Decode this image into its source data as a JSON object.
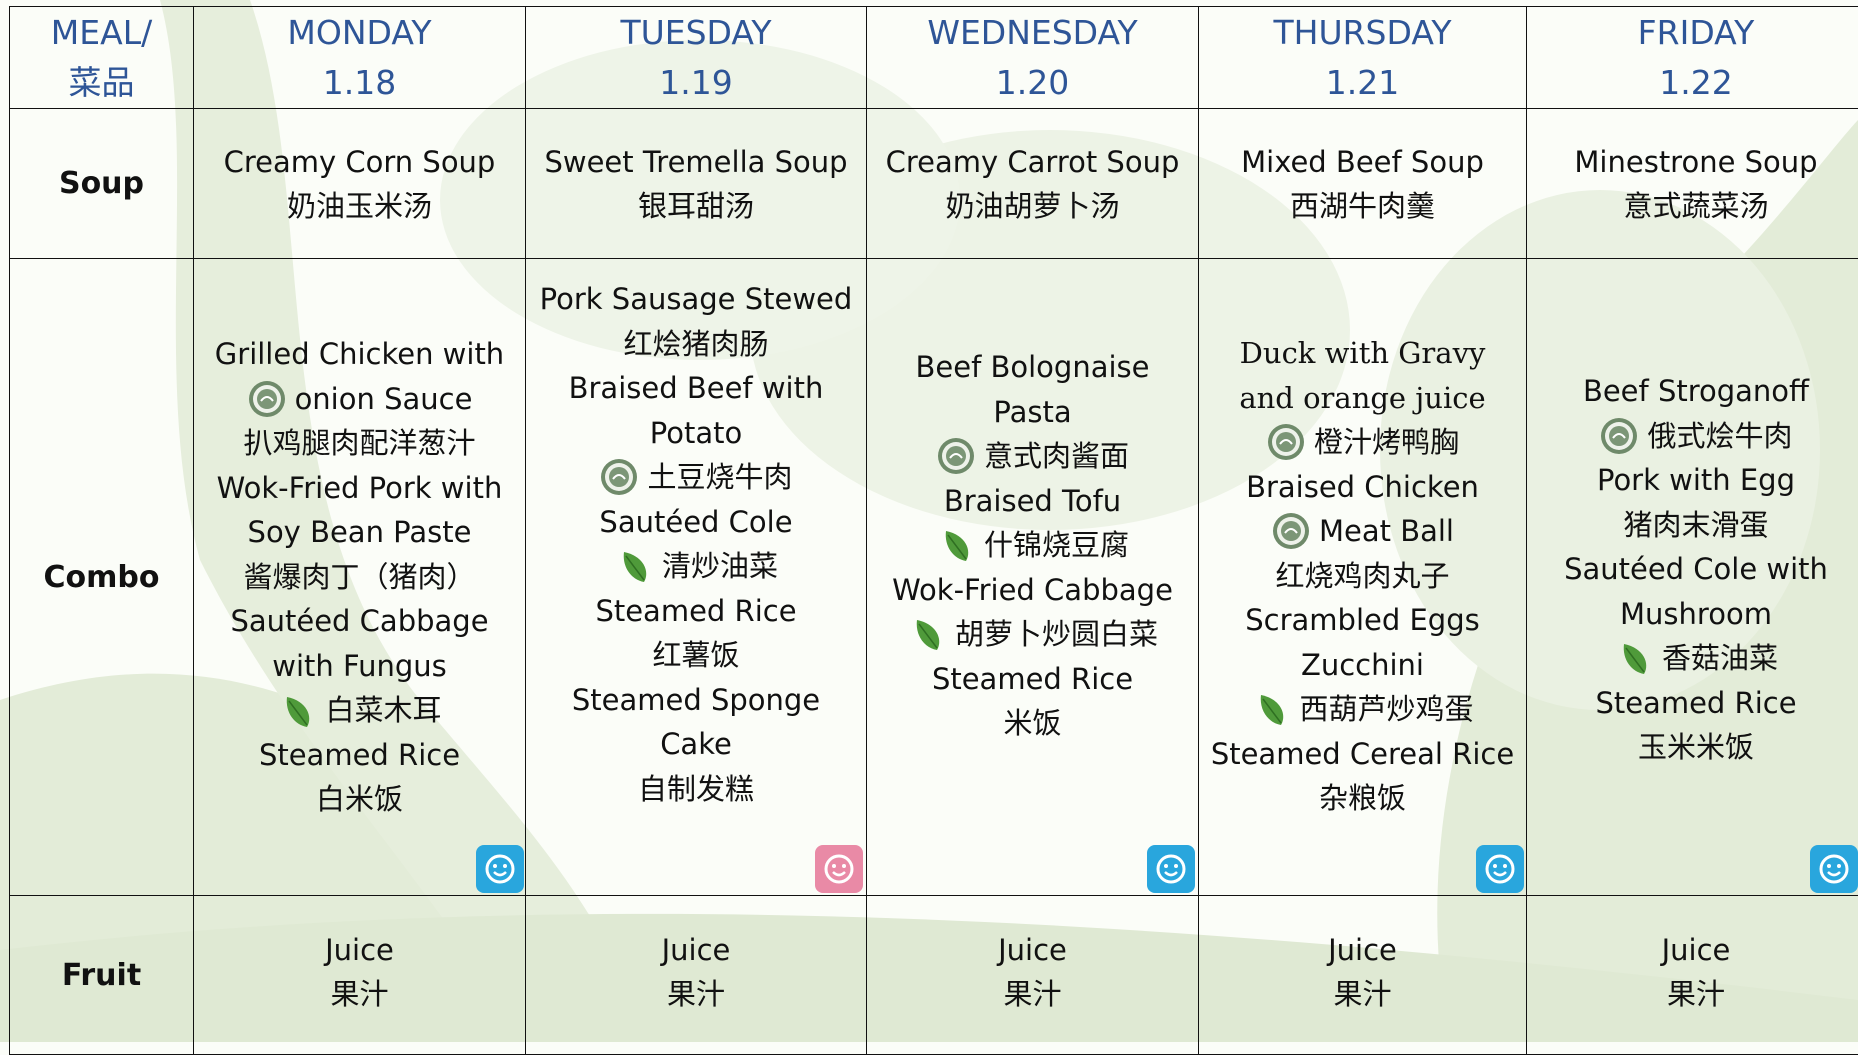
{
  "header": {
    "meal": [
      "MEAL/",
      "菜品"
    ],
    "days": [
      {
        "day": "MONDAY",
        "date": "1.18"
      },
      {
        "day": "TUESDAY",
        "date": "1.19"
      },
      {
        "day": "WEDNESDAY",
        "date": "1.20"
      },
      {
        "day": "THURSDAY",
        "date": "1.21"
      },
      {
        "day": "FRIDAY",
        "date": "1.22"
      }
    ]
  },
  "rows": {
    "soup": {
      "label": "Soup",
      "items": [
        [
          "Creamy Corn Soup",
          "奶油玉米汤"
        ],
        [
          "Sweet Tremella Soup",
          "银耳甜汤"
        ],
        [
          "Creamy Carrot Soup",
          "奶油胡萝卜汤"
        ],
        [
          "Mixed Beef Soup",
          "西湖牛肉羹"
        ],
        [
          "Minestrone Soup",
          "意式蔬菜汤"
        ]
      ]
    },
    "combo": {
      "label": "Combo",
      "items": [
        [
          "Grilled Chicken with",
          "onion Sauce",
          "扒鸡腿肉配洋葱汁",
          "Wok-Fried Pork with",
          "Soy Bean Paste",
          "酱爆肉丁（猪肉）",
          "Sautéed Cabbage",
          "with Fungus",
          "白菜木耳",
          "Steamed Rice",
          "白米饭"
        ],
        [
          "Pork  Sausage Stewed",
          "红烩猪肉肠",
          "Braised Beef with",
          "Potato",
          "土豆烧牛肉",
          "Sautéed Cole",
          "清炒油菜",
          "Steamed Rice",
          "红薯饭",
          "Steamed Sponge",
          "Cake",
          "自制发糕"
        ],
        [
          "Beef Bolognaise",
          "Pasta",
          "意式肉酱面",
          "Braised Tofu",
          "什锦烧豆腐",
          "Wok-Fried Cabbage",
          "胡萝卜炒圆白菜",
          "Steamed Rice",
          "米饭"
        ],
        [
          "Duck  with Gravy",
          "and orange juice",
          "橙汁烤鸭胸",
          "Braised Chicken",
          "Meat Ball",
          "红烧鸡肉丸子",
          "Scrambled Eggs",
          "Zucchini",
          "西葫芦炒鸡蛋",
          "Steamed Cereal Rice",
          "杂粮饭"
        ],
        [
          "Beef Stroganoff",
          "俄式烩牛肉",
          "Pork with Egg",
          "猪肉末滑蛋",
          "Sautéed Cole with",
          "Mushroom",
          "香菇油菜",
          "Steamed Rice",
          "玉米米饭"
        ]
      ]
    },
    "fruit": {
      "label": "Fruit",
      "items": [
        [
          "Juice",
          "果汁"
        ],
        [
          "Juice",
          "果汁"
        ],
        [
          "Juice",
          "果汁"
        ],
        [
          "Juice",
          "果汁"
        ],
        [
          "Juice",
          "果汁"
        ]
      ]
    }
  }
}
